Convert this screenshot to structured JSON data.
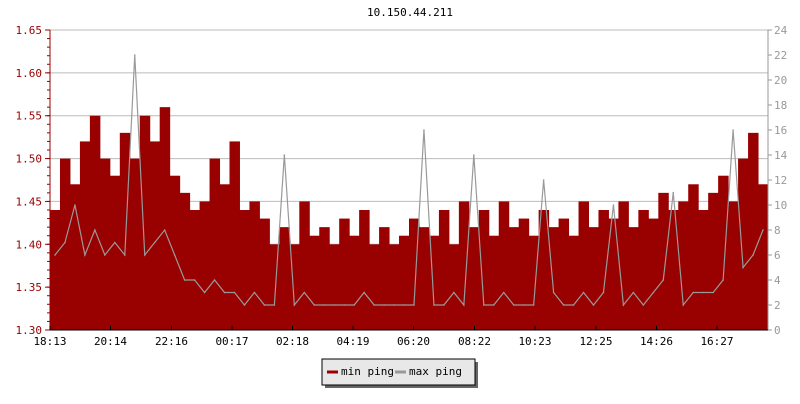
{
  "chart_data": {
    "type": "area",
    "title": "10.150.44.211",
    "x": [
      "18:13",
      "18:33",
      "18:53",
      "19:13",
      "19:33",
      "19:53",
      "20:13",
      "20:33",
      "20:53",
      "21:13",
      "21:33",
      "21:53",
      "22:13",
      "22:33",
      "22:53",
      "23:13",
      "23:33",
      "23:53",
      "00:13",
      "00:33",
      "00:53",
      "01:13",
      "01:33",
      "01:53",
      "02:13",
      "02:33",
      "02:53",
      "03:13",
      "03:33",
      "03:53",
      "04:13",
      "04:33",
      "04:53",
      "05:13",
      "05:33",
      "05:53",
      "06:13",
      "06:33",
      "06:53",
      "07:13",
      "07:33",
      "07:53",
      "08:13",
      "08:33",
      "08:53",
      "09:13",
      "09:33",
      "09:53",
      "10:13",
      "10:33",
      "10:53",
      "11:13",
      "11:33",
      "11:53",
      "12:13",
      "12:33",
      "12:53",
      "13:13",
      "13:33",
      "13:53",
      "14:13",
      "14:33",
      "14:53",
      "15:13",
      "15:33",
      "15:53",
      "16:13",
      "16:33",
      "16:53",
      "17:13",
      "17:33",
      "17:53"
    ],
    "x_ticks": [
      "18:13",
      "20:14",
      "22:16",
      "00:17",
      "02:18",
      "04:19",
      "06:20",
      "08:22",
      "10:23",
      "12:25",
      "14:26",
      "16:27"
    ],
    "y_left": {
      "ylim": [
        1.3,
        1.65
      ],
      "ticks": [
        "1.30",
        "1.35",
        "1.40",
        "1.45",
        "1.50",
        "1.55",
        "1.60",
        "1.65"
      ],
      "color": "#990000"
    },
    "y_right": {
      "ylim": [
        0,
        24
      ],
      "ticks": [
        "0",
        "2",
        "4",
        "6",
        "8",
        "10",
        "12",
        "14",
        "16",
        "18",
        "20",
        "22",
        "24"
      ],
      "color": "#999999"
    },
    "grid": true,
    "legend_placement": "bottom-center",
    "series": [
      {
        "name": "min ping",
        "axis": "left",
        "color": "#990000",
        "values": [
          1.44,
          1.5,
          1.47,
          1.52,
          1.55,
          1.5,
          1.48,
          1.53,
          1.5,
          1.55,
          1.52,
          1.56,
          1.48,
          1.46,
          1.44,
          1.45,
          1.5,
          1.47,
          1.52,
          1.44,
          1.45,
          1.43,
          1.4,
          1.42,
          1.4,
          1.45,
          1.41,
          1.42,
          1.4,
          1.43,
          1.41,
          1.44,
          1.4,
          1.42,
          1.4,
          1.41,
          1.43,
          1.42,
          1.41,
          1.44,
          1.4,
          1.45,
          1.42,
          1.44,
          1.41,
          1.45,
          1.42,
          1.43,
          1.41,
          1.44,
          1.42,
          1.43,
          1.41,
          1.45,
          1.42,
          1.44,
          1.43,
          1.45,
          1.42,
          1.44,
          1.43,
          1.46,
          1.44,
          1.45,
          1.47,
          1.44,
          1.46,
          1.48,
          1.45,
          1.5,
          1.53,
          1.47
        ]
      },
      {
        "name": "max ping",
        "axis": "right",
        "color": "#999999",
        "values": [
          6,
          7,
          10,
          6,
          8,
          6,
          7,
          6,
          22,
          6,
          7,
          8,
          6,
          4,
          4,
          3,
          4,
          3,
          3,
          2,
          3,
          2,
          2,
          14,
          2,
          3,
          2,
          2,
          2,
          2,
          2,
          3,
          2,
          2,
          2,
          2,
          2,
          16,
          2,
          2,
          3,
          2,
          14,
          2,
          2,
          3,
          2,
          2,
          2,
          12,
          3,
          2,
          2,
          3,
          2,
          3,
          10,
          2,
          3,
          2,
          3,
          4,
          11,
          2,
          3,
          3,
          3,
          4,
          16,
          5,
          6,
          8
        ]
      }
    ]
  }
}
